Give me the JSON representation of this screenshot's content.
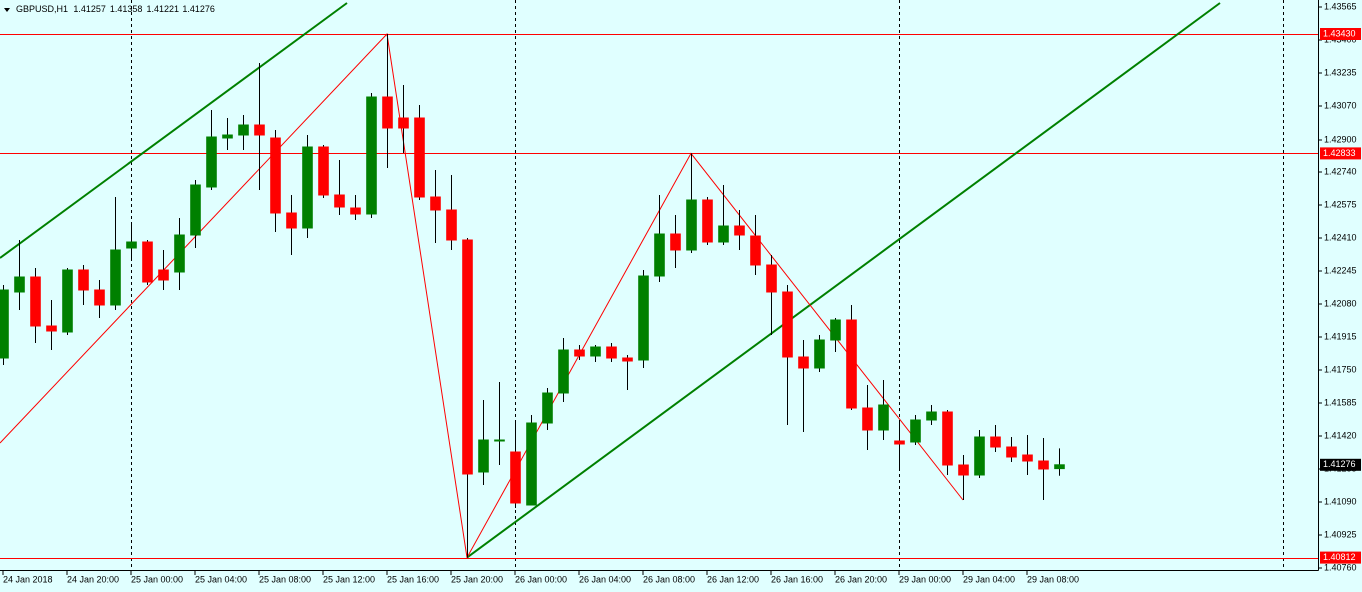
{
  "chart_data": {
    "type": "candlestick",
    "title": "GBPUSD,H1",
    "categories": [
      "24 Jan 2018",
      null,
      null,
      null,
      "24 Jan 20:00",
      null,
      null,
      null,
      "25 Jan 00:00",
      null,
      null,
      null,
      "25 Jan 04:00",
      null,
      null,
      null,
      "25 Jan 08:00",
      null,
      null,
      null,
      "25 Jan 12:00",
      null,
      null,
      null,
      "25 Jan 16:00",
      null,
      null,
      null,
      "25 Jan 20:00",
      null,
      null,
      null,
      "26 Jan 00:00",
      null,
      null,
      null,
      "26 Jan 04:00",
      null,
      null,
      null,
      "26 Jan 08:00",
      null,
      null,
      null,
      "26 Jan 12:00",
      null,
      null,
      null,
      "26 Jan 16:00",
      null,
      null,
      null,
      "26 Jan 20:00",
      null,
      null,
      null,
      "29 Jan 00:00",
      null,
      null,
      null,
      "29 Jan 04:00",
      null,
      null,
      null,
      "29 Jan 08:00",
      null,
      null
    ],
    "open": [
      1.4181,
      1.4214,
      1.42215,
      1.4197,
      1.4194,
      1.4225,
      1.4215,
      1.42075,
      1.4236,
      1.4239,
      1.4225,
      1.4224,
      1.42425,
      1.42665,
      1.4291,
      1.42925,
      1.42975,
      1.4291,
      1.42535,
      1.4246,
      1.42865,
      1.42625,
      1.4256,
      1.4253,
      1.43115,
      1.4301,
      1.4301,
      1.42615,
      1.4255,
      1.424,
      1.4124,
      1.414,
      1.4134,
      1.41075,
      1.41485,
      1.41635,
      1.4185,
      1.4182,
      1.41865,
      1.4181,
      1.418,
      1.4222,
      1.4243,
      1.4235,
      1.426,
      1.4239,
      1.4247,
      1.4242,
      1.42275,
      1.4214,
      1.41815,
      1.4176,
      1.419,
      1.42,
      1.4156,
      1.4145,
      1.41395,
      1.4139,
      1.415,
      1.4154,
      1.41275,
      1.41225,
      1.41415,
      1.41365,
      1.41325,
      1.41295,
      1.41257
    ],
    "high": [
      1.42175,
      1.424,
      1.4226,
      1.421,
      1.4226,
      1.42275,
      1.422,
      1.42615,
      1.42475,
      1.424,
      1.4235,
      1.4251,
      1.427,
      1.4305,
      1.4301,
      1.43025,
      1.43285,
      1.4295,
      1.42625,
      1.42925,
      1.42875,
      1.428,
      1.42625,
      1.43135,
      1.4343,
      1.43175,
      1.43075,
      1.4275,
      1.42725,
      1.4241,
      1.416,
      1.4169,
      1.4149,
      1.41525,
      1.4166,
      1.4191,
      1.41875,
      1.41875,
      1.41885,
      1.41825,
      1.4225,
      1.42625,
      1.42525,
      1.42833,
      1.42615,
      1.42675,
      1.4255,
      1.42525,
      1.42325,
      1.42175,
      1.419,
      1.41925,
      1.4201,
      1.42075,
      1.41675,
      1.417,
      1.415,
      1.41525,
      1.41575,
      1.4155,
      1.41325,
      1.4145,
      1.41475,
      1.41415,
      1.41425,
      1.4141,
      1.41358
    ],
    "low": [
      1.41775,
      1.4205,
      1.41885,
      1.4185,
      1.41925,
      1.42075,
      1.4201,
      1.4205,
      1.423,
      1.42175,
      1.4215,
      1.4215,
      1.4236,
      1.4265,
      1.4285,
      1.4285,
      1.4265,
      1.4244,
      1.42325,
      1.4241,
      1.4261,
      1.42525,
      1.425,
      1.4251,
      1.4276,
      1.42835,
      1.426,
      1.42385,
      1.4235,
      1.40812,
      1.41175,
      1.41275,
      1.4106,
      1.41075,
      1.4145,
      1.4159,
      1.418,
      1.4179,
      1.4179,
      1.4165,
      1.4176,
      1.4219,
      1.4226,
      1.42335,
      1.42375,
      1.42375,
      1.4235,
      1.42225,
      1.41925,
      1.41475,
      1.4144,
      1.4174,
      1.4184,
      1.4155,
      1.4135,
      1.414,
      1.4125,
      1.41375,
      1.41475,
      1.41225,
      1.411,
      1.4121,
      1.4134,
      1.4129,
      1.41225,
      1.411,
      1.41221
    ],
    "close": [
      1.4215,
      1.42215,
      1.4197,
      1.41945,
      1.4225,
      1.4215,
      1.42075,
      1.4235,
      1.4239,
      1.4219,
      1.422,
      1.42425,
      1.42675,
      1.42915,
      1.42925,
      1.42975,
      1.42925,
      1.42535,
      1.4246,
      1.42865,
      1.42625,
      1.42565,
      1.4253,
      1.43115,
      1.4296,
      1.4296,
      1.42615,
      1.4255,
      1.424,
      1.4123,
      1.414,
      1.414,
      1.41085,
      1.41485,
      1.41635,
      1.4185,
      1.4182,
      1.41865,
      1.4181,
      1.41795,
      1.4222,
      1.4243,
      1.4235,
      1.426,
      1.4239,
      1.4247,
      1.42425,
      1.42275,
      1.4214,
      1.41815,
      1.4176,
      1.419,
      1.42,
      1.4156,
      1.4145,
      1.41575,
      1.4138,
      1.415,
      1.4154,
      1.41275,
      1.41225,
      1.41415,
      1.41365,
      1.41315,
      1.41295,
      1.41255,
      1.41276
    ],
    "bull_color": "#008000",
    "bear_color": "#ff0000",
    "xlim": [
      -0.1875,
      82.1875
    ],
    "ylim": [
      1.4075,
      1.436
    ],
    "yticks": [
      1.43565,
      {
        "value": 1.434,
        "label": "1.43400"
      },
      1.43235,
      {
        "value": 1.4307,
        "label": "1.43070"
      },
      {
        "value": 1.429,
        "label": "1.42900"
      },
      {
        "value": 1.4274,
        "label": "1.42740"
      },
      1.42575,
      {
        "value": 1.4241,
        "label": "1.42410"
      },
      1.42245,
      {
        "value": 1.4208,
        "label": "1.42080"
      },
      1.41915,
      {
        "value": 1.4175,
        "label": "1.41750"
      },
      1.41585,
      {
        "value": 1.4142,
        "label": "1.41420"
      },
      1.41255,
      {
        "value": 1.4109,
        "label": "1.41090"
      },
      1.40925,
      {
        "value": 1.4076,
        "label": "1.40760"
      }
    ],
    "levels": [
      {
        "value": 1.4343,
        "label": "1.43430"
      },
      1.42833,
      1.40812
    ],
    "level_color": "#ff0000",
    "zigzag": {
      "color": "#ff0000",
      "x": [
        -0.1875,
        24,
        29,
        43,
        60
      ],
      "values": [
        1.41385,
        1.4343,
        1.40812,
        1.42833,
        1.411
      ]
    },
    "channel": {
      "color": "#008000",
      "lines": [
        {
          "x": [
            -0.1875,
            21.5
          ],
          "values": [
            1.4231,
            1.43585
          ]
        },
        {
          "x": [
            29,
            76.0625
          ],
          "values": [
            1.40812,
            1.43585
          ]
        }
      ]
    },
    "period_separators": true
  }
}
